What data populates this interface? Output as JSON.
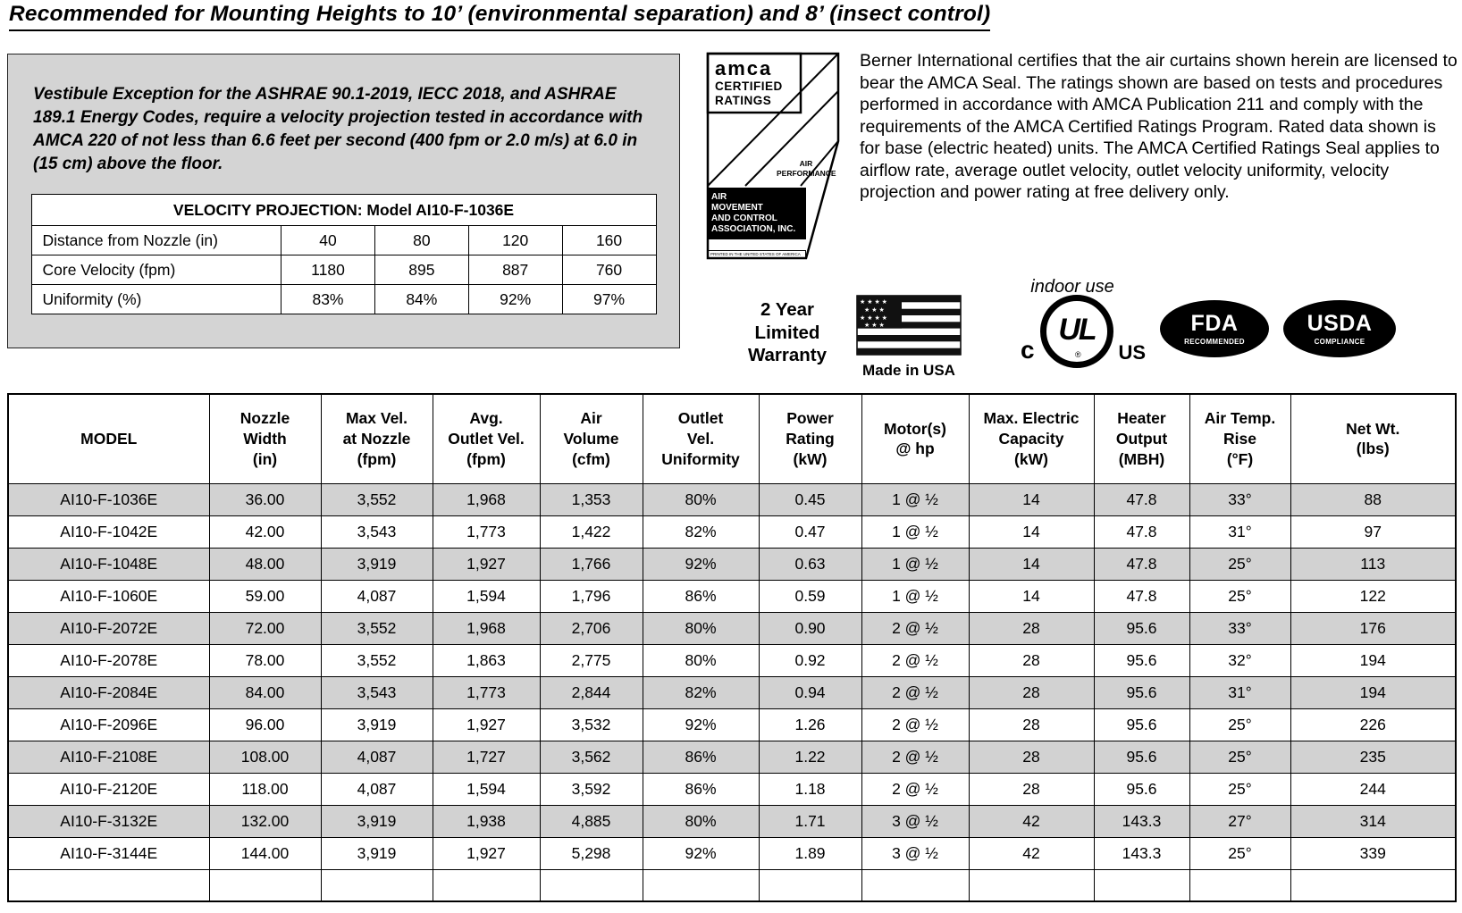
{
  "page": {
    "heading": "Recommended for Mounting Heights to 10’ (environmental separation) and 8’ (insect control)"
  },
  "vestibule": {
    "text": "Vestibule Exception for the ASHRAE 90.1-2019, IECC 2018, and ASHRAE 189.1 Energy Codes, require a velocity projection tested in accordance with AMCA 220 of not less than 6.6 feet per second (400 fpm or 2.0 m/s) at 6.0 in (15 cm) above the floor.",
    "velocity_table": {
      "title": "VELOCITY PROJECTION: Model AI10-F-1036E",
      "rows": [
        [
          "Distance from Nozzle (in)",
          "40",
          "80",
          "120",
          "160"
        ],
        [
          "Core Velocity (fpm)",
          "1180",
          "895",
          "887",
          "760"
        ],
        [
          "Uniformity (%)",
          "83%",
          "84%",
          "92%",
          "97%"
        ]
      ]
    }
  },
  "amca_seal": {
    "brand": "amca",
    "certified": "CERTIFIED\nRATINGS",
    "air_performance": "AIR\nPERFORMANCE",
    "association": "AIR\nMOVEMENT\nAND CONTROL\nASSOCIATION, INC.",
    "fine_print": "PRINTED IN THE UNITED STATES OF AMERICA"
  },
  "certification_text": "Berner International certifies that the air curtains shown herein are licensed to bear the AMCA Seal.  The ratings shown are based on tests and procedures performed in accordance with AMCA Publication 211 and comply with the requirements of the AMCA Certified Ratings Program. Rated data shown is for base (electric heated) units.  The AMCA Certified Ratings Seal applies to airflow rate, average outlet velocity, outlet velocity uniformity, velocity projection and power rating  at free delivery only.",
  "badges": {
    "warranty": "2 Year\nLimited\nWarranty",
    "made_in_usa": "Made in USA",
    "indoor_use": "indoor use",
    "ul": {
      "c": "c",
      "letters": "UL",
      "registered": "®",
      "us": "US"
    },
    "fda": {
      "title": "FDA",
      "subtitle": "RECOMMENDED"
    },
    "usda": {
      "title": "USDA",
      "subtitle": "COMPLIANCE"
    }
  },
  "main_table": {
    "headers": [
      "MODEL",
      "Nozzle\nWidth\n(in)",
      "Max Vel.\nat Nozzle\n(fpm)",
      "Avg.\nOutlet Vel.\n(fpm)",
      "Air\nVolume\n(cfm)",
      "Outlet\nVel.\nUniformity",
      "Power\nRating\n(kW)",
      "Motor(s)\n@ hp",
      "Max. Electric\nCapacity\n(kW)",
      "Heater\nOutput\n(MBH)",
      "Air Temp.\nRise\n(°F)",
      "Net Wt.\n(lbs)"
    ],
    "rows": [
      [
        "AI10-F-1036E",
        "36.00",
        "3,552",
        "1,968",
        "1,353",
        "80%",
        "0.45",
        "1 @ ½",
        "14",
        "47.8",
        "33°",
        "88"
      ],
      [
        "AI10-F-1042E",
        "42.00",
        "3,543",
        "1,773",
        "1,422",
        "82%",
        "0.47",
        "1 @ ½",
        "14",
        "47.8",
        "31°",
        "97"
      ],
      [
        "AI10-F-1048E",
        "48.00",
        "3,919",
        "1,927",
        "1,766",
        "92%",
        "0.63",
        "1 @ ½",
        "14",
        "47.8",
        "25°",
        "113"
      ],
      [
        "AI10-F-1060E",
        "59.00",
        "4,087",
        "1,594",
        "1,796",
        "86%",
        "0.59",
        "1 @ ½",
        "14",
        "47.8",
        "25°",
        "122"
      ],
      [
        "AI10-F-2072E",
        "72.00",
        "3,552",
        "1,968",
        "2,706",
        "80%",
        "0.90",
        "2 @ ½",
        "28",
        "95.6",
        "33°",
        "176"
      ],
      [
        "AI10-F-2078E",
        "78.00",
        "3,552",
        "1,863",
        "2,775",
        "80%",
        "0.92",
        "2 @ ½",
        "28",
        "95.6",
        "32°",
        "194"
      ],
      [
        "AI10-F-2084E",
        "84.00",
        "3,543",
        "1,773",
        "2,844",
        "82%",
        "0.94",
        "2 @ ½",
        "28",
        "95.6",
        "31°",
        "194"
      ],
      [
        "AI10-F-2096E",
        "96.00",
        "3,919",
        "1,927",
        "3,532",
        "92%",
        "1.26",
        "2 @ ½",
        "28",
        "95.6",
        "25°",
        "226"
      ],
      [
        "AI10-F-2108E",
        "108.00",
        "4,087",
        "1,727",
        "3,562",
        "86%",
        "1.22",
        "2 @ ½",
        "28",
        "95.6",
        "25°",
        "235"
      ],
      [
        "AI10-F-2120E",
        "118.00",
        "4,087",
        "1,594",
        "3,592",
        "86%",
        "1.18",
        "2 @ ½",
        "28",
        "95.6",
        "25°",
        "244"
      ],
      [
        "AI10-F-3132E",
        "132.00",
        "3,919",
        "1,938",
        "4,885",
        "80%",
        "1.71",
        "3 @ ½",
        "42",
        "143.3",
        "27°",
        "314"
      ],
      [
        "AI10-F-3144E",
        "144.00",
        "3,919",
        "1,927",
        "5,298",
        "92%",
        "1.89",
        "3 @ ½",
        "42",
        "143.3",
        "25°",
        "339"
      ]
    ]
  }
}
